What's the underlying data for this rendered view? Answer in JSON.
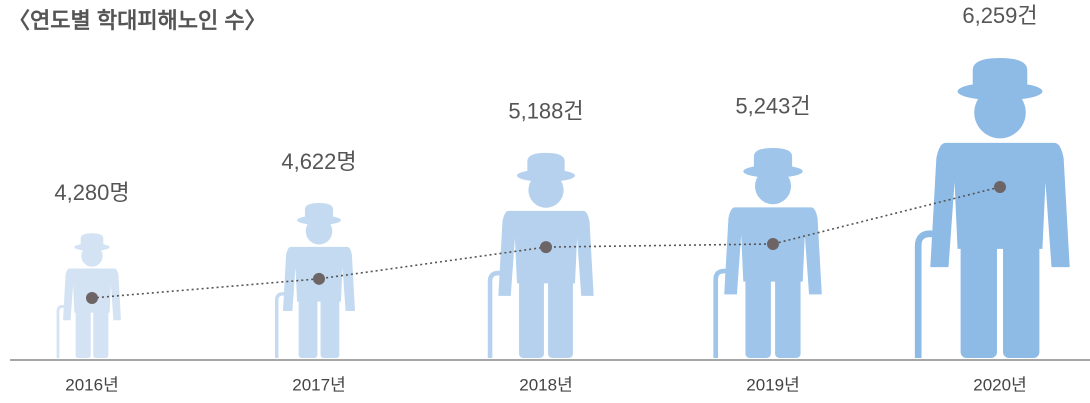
{
  "chart_data": {
    "type": "pictogram",
    "title": "〈연도별 학대피해노인 수〉",
    "categories": [
      "2016년",
      "2017년",
      "2018년",
      "2019년",
      "2020년"
    ],
    "values": [
      4280,
      4622,
      5188,
      5243,
      6259
    ],
    "value_labels": [
      "4,280명",
      "4,622명",
      "5,188건",
      "5,243건",
      "6,259건"
    ],
    "colors": [
      "#d3e3f4",
      "#c3daf1",
      "#b5d1ee",
      "#9fc5ea",
      "#8dbbe6"
    ],
    "line_color": "#555555",
    "dot_color": "#6d6466"
  }
}
